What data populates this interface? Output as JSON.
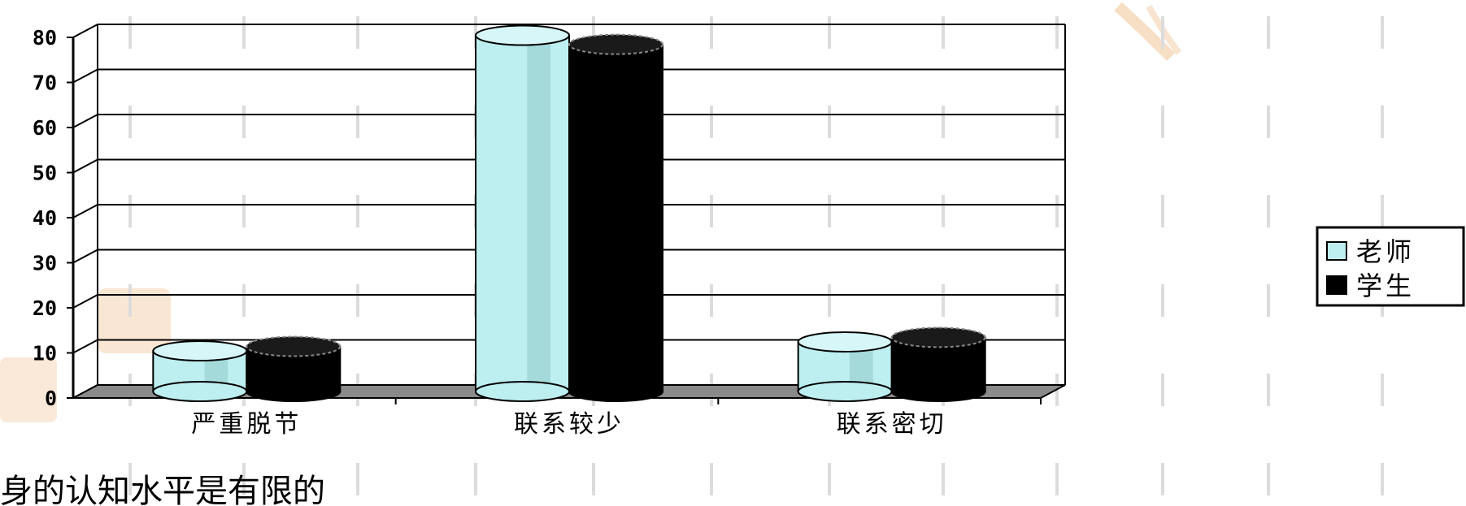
{
  "chart_data": {
    "type": "bar",
    "categories": [
      "严重脱节",
      "联系较少",
      "联系密切"
    ],
    "series": [
      {
        "name": "老师",
        "values": [
          9,
          79,
          11
        ],
        "color": "#bdeef0"
      },
      {
        "name": "学生",
        "values": [
          10,
          77,
          12
        ],
        "color": "#000000"
      }
    ],
    "yticks": [
      0,
      10,
      20,
      30,
      40,
      50,
      60,
      70,
      80
    ],
    "ylim": [
      0,
      80
    ],
    "grid": true,
    "legend_position": "right",
    "style": "3d-cylinder"
  },
  "colors": {
    "background": "#ffffff",
    "floor": "#8a8a8a",
    "grid": "#000000",
    "watermark": "#f2c9a0"
  },
  "caption": "身的认知水平是有限的"
}
